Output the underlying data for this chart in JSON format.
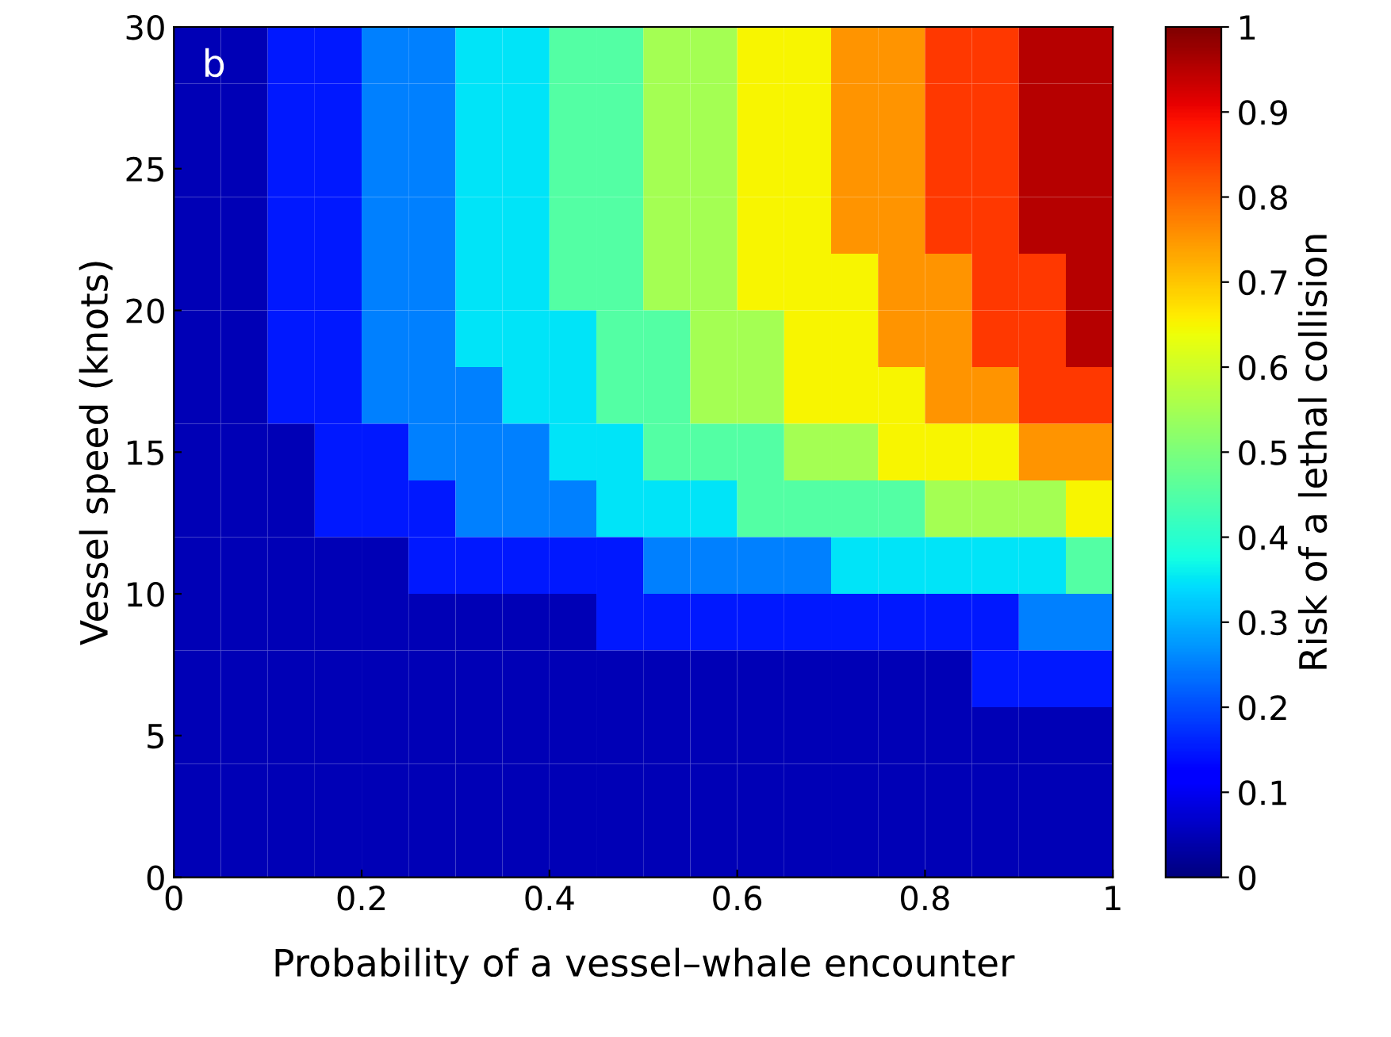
{
  "chart_data": {
    "type": "heatmap",
    "xlabel": "Probability of a vessel–whale encounter",
    "ylabel": "Vessel speed (knots)",
    "clabel": "Risk of a lethal collision",
    "annotations": [
      "b"
    ],
    "cells": [
      [
        0.05,
        0.05,
        0.15,
        0.15,
        0.25,
        0.25,
        0.35,
        0.35,
        0.45,
        0.45,
        0.55,
        0.55,
        0.65,
        0.65,
        0.75,
        0.75,
        0.85,
        0.85,
        0.95,
        0.95
      ],
      [
        0.05,
        0.05,
        0.15,
        0.15,
        0.25,
        0.25,
        0.35,
        0.35,
        0.45,
        0.45,
        0.55,
        0.55,
        0.65,
        0.65,
        0.75,
        0.75,
        0.85,
        0.85,
        0.95,
        0.95
      ],
      [
        0.05,
        0.05,
        0.15,
        0.15,
        0.25,
        0.25,
        0.35,
        0.35,
        0.45,
        0.45,
        0.55,
        0.55,
        0.65,
        0.65,
        0.75,
        0.75,
        0.85,
        0.85,
        0.95,
        0.95
      ],
      [
        0.05,
        0.05,
        0.15,
        0.15,
        0.25,
        0.25,
        0.35,
        0.35,
        0.45,
        0.45,
        0.55,
        0.55,
        0.65,
        0.65,
        0.75,
        0.75,
        0.85,
        0.85,
        0.95,
        0.95
      ],
      [
        0.05,
        0.05,
        0.15,
        0.15,
        0.25,
        0.25,
        0.35,
        0.35,
        0.45,
        0.45,
        0.55,
        0.55,
        0.65,
        0.65,
        0.65,
        0.75,
        0.75,
        0.85,
        0.85,
        0.95
      ],
      [
        0.05,
        0.05,
        0.15,
        0.15,
        0.25,
        0.25,
        0.35,
        0.35,
        0.35,
        0.45,
        0.45,
        0.55,
        0.55,
        0.65,
        0.65,
        0.75,
        0.75,
        0.85,
        0.85,
        0.95
      ],
      [
        0.05,
        0.05,
        0.15,
        0.15,
        0.25,
        0.25,
        0.25,
        0.35,
        0.35,
        0.45,
        0.45,
        0.55,
        0.55,
        0.65,
        0.65,
        0.65,
        0.75,
        0.75,
        0.85,
        0.85
      ],
      [
        0.05,
        0.05,
        0.05,
        0.15,
        0.15,
        0.25,
        0.25,
        0.25,
        0.35,
        0.35,
        0.45,
        0.45,
        0.45,
        0.55,
        0.55,
        0.65,
        0.65,
        0.65,
        0.75,
        0.75
      ],
      [
        0.05,
        0.05,
        0.05,
        0.15,
        0.15,
        0.15,
        0.25,
        0.25,
        0.25,
        0.35,
        0.35,
        0.35,
        0.45,
        0.45,
        0.45,
        0.45,
        0.55,
        0.55,
        0.55,
        0.65
      ],
      [
        0.05,
        0.05,
        0.05,
        0.05,
        0.05,
        0.15,
        0.15,
        0.15,
        0.15,
        0.15,
        0.25,
        0.25,
        0.25,
        0.25,
        0.35,
        0.35,
        0.35,
        0.35,
        0.35,
        0.45
      ],
      [
        0.05,
        0.05,
        0.05,
        0.05,
        0.05,
        0.05,
        0.05,
        0.05,
        0.05,
        0.15,
        0.15,
        0.15,
        0.15,
        0.15,
        0.15,
        0.15,
        0.15,
        0.15,
        0.25,
        0.25
      ],
      [
        0.05,
        0.05,
        0.05,
        0.05,
        0.05,
        0.05,
        0.05,
        0.05,
        0.05,
        0.05,
        0.05,
        0.05,
        0.05,
        0.05,
        0.05,
        0.05,
        0.05,
        0.15,
        0.15,
        0.15
      ],
      [
        0.05,
        0.05,
        0.05,
        0.05,
        0.05,
        0.05,
        0.05,
        0.05,
        0.05,
        0.05,
        0.05,
        0.05,
        0.05,
        0.05,
        0.05,
        0.05,
        0.05,
        0.05,
        0.05,
        0.05
      ],
      [
        0.05,
        0.05,
        0.05,
        0.05,
        0.05,
        0.05,
        0.05,
        0.05,
        0.05,
        0.05,
        0.05,
        0.05,
        0.05,
        0.05,
        0.05,
        0.05,
        0.05,
        0.05,
        0.05,
        0.05
      ],
      [
        0.05,
        0.05,
        0.05,
        0.05,
        0.05,
        0.05,
        0.05,
        0.05,
        0.05,
        0.05,
        0.05,
        0.05,
        0.05,
        0.05,
        0.05,
        0.05,
        0.05,
        0.05,
        0.05,
        0.05
      ]
    ],
    "xlim": [
      0,
      1
    ],
    "xticks": [
      0,
      0.2,
      0.4,
      0.6,
      0.8,
      1
    ],
    "ylim": [
      0,
      30
    ],
    "yticks": [
      0,
      5,
      10,
      15,
      20,
      25,
      30
    ],
    "clim": [
      0,
      1
    ],
    "cticks": [
      0,
      0.1,
      0.2,
      0.3,
      0.4,
      0.5,
      0.6,
      0.7,
      0.8,
      0.9,
      1
    ]
  }
}
